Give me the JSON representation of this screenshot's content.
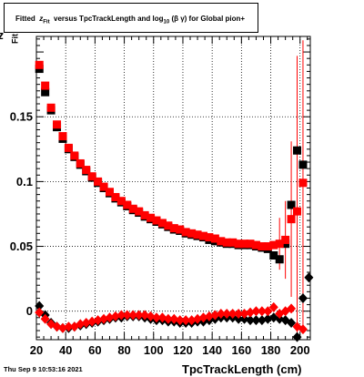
{
  "title": {
    "prefix": "Fitted",
    "z_sym": "z",
    "z_sub": "Fit",
    "middle": "versus TpcTrackLength and log",
    "log_sub": "10",
    "suffix": "(β   γ) for Global pion+"
  },
  "date_label": "Thu Sep  9 10:53:16 2021",
  "x_axis_title": "TpcTrackLength (cm)",
  "y_axis_title": {
    "main": "z",
    "sub": "Fit"
  },
  "colors": {
    "black_series": "#000000",
    "red_series": "#ff0000",
    "grid": "#000000"
  },
  "chart_data": {
    "type": "scatter",
    "xlim": [
      20,
      207
    ],
    "ylim": [
      -0.022,
      0.212
    ],
    "x_ticks": [
      20,
      40,
      60,
      80,
      100,
      120,
      140,
      160,
      180,
      200
    ],
    "y_ticks": [
      0,
      0.05,
      0.1,
      0.15
    ],
    "y_tick_labels": [
      "0",
      "0.05",
      "0.1",
      "0.15"
    ],
    "grid": true,
    "series": [
      {
        "marker": "square",
        "color": "#000000",
        "points": [
          [
            22,
            0.187
          ],
          [
            26,
            0.169
          ],
          [
            30,
            0.155
          ],
          [
            34,
            0.142
          ],
          [
            38,
            0.133
          ],
          [
            42,
            0.125
          ],
          [
            46,
            0.119
          ],
          [
            50,
            0.113
          ],
          [
            54,
            0.108
          ],
          [
            58,
            0.103
          ],
          [
            62,
            0.099
          ],
          [
            66,
            0.095
          ],
          [
            70,
            0.091
          ],
          [
            74,
            0.087
          ],
          [
            78,
            0.084
          ],
          [
            82,
            0.081
          ],
          [
            86,
            0.078
          ],
          [
            90,
            0.076
          ],
          [
            94,
            0.073
          ],
          [
            98,
            0.071
          ],
          [
            102,
            0.069
          ],
          [
            106,
            0.067
          ],
          [
            110,
            0.065
          ],
          [
            114,
            0.063
          ],
          [
            118,
            0.062
          ],
          [
            122,
            0.06
          ],
          [
            126,
            0.059
          ],
          [
            130,
            0.058
          ],
          [
            134,
            0.057
          ],
          [
            138,
            0.055
          ],
          [
            142,
            0.054
          ],
          [
            146,
            0.053
          ],
          [
            150,
            0.052
          ],
          [
            154,
            0.052
          ],
          [
            158,
            0.051
          ],
          [
            162,
            0.051
          ],
          [
            166,
            0.051
          ],
          [
            170,
            0.05
          ],
          [
            174,
            0.049
          ],
          [
            178,
            0.048
          ],
          [
            182,
            0.043
          ],
          [
            186,
            0.04
          ],
          [
            190,
            0.052
          ],
          [
            194,
            0.082
          ],
          [
            198,
            0.124
          ],
          [
            202,
            0.113
          ]
        ]
      },
      {
        "marker": "square",
        "color": "#ff0000",
        "points": [
          [
            22,
            0.19
          ],
          [
            26,
            0.174
          ],
          [
            30,
            0.157
          ],
          [
            34,
            0.144
          ],
          [
            38,
            0.135
          ],
          [
            42,
            0.126
          ],
          [
            46,
            0.12
          ],
          [
            50,
            0.114
          ],
          [
            54,
            0.109
          ],
          [
            58,
            0.104
          ],
          [
            62,
            0.1
          ],
          [
            66,
            0.096
          ],
          [
            70,
            0.092
          ],
          [
            74,
            0.088
          ],
          [
            78,
            0.085
          ],
          [
            82,
            0.082
          ],
          [
            86,
            0.079
          ],
          [
            90,
            0.077
          ],
          [
            94,
            0.074
          ],
          [
            98,
            0.072
          ],
          [
            102,
            0.07
          ],
          [
            106,
            0.068
          ],
          [
            110,
            0.066
          ],
          [
            114,
            0.064
          ],
          [
            118,
            0.063
          ],
          [
            122,
            0.061
          ],
          [
            126,
            0.06
          ],
          [
            130,
            0.059
          ],
          [
            134,
            0.058
          ],
          [
            138,
            0.057
          ],
          [
            142,
            0.056
          ],
          [
            146,
            0.054
          ],
          [
            150,
            0.053
          ],
          [
            154,
            0.053
          ],
          [
            158,
            0.052
          ],
          [
            162,
            0.052
          ],
          [
            166,
            0.052
          ],
          [
            170,
            0.051
          ],
          [
            174,
            0.05
          ],
          [
            178,
            0.05
          ],
          [
            182,
            0.051
          ],
          [
            186,
            0.052
          ],
          [
            190,
            0.055
          ],
          [
            194,
            0.071
          ],
          [
            198,
            0.077
          ],
          [
            202,
            0.099
          ]
        ]
      },
      {
        "marker": "diamond",
        "color": "#000000",
        "points": [
          [
            22,
            0.004
          ],
          [
            26,
            -0.003
          ],
          [
            30,
            -0.009
          ],
          [
            34,
            -0.012
          ],
          [
            38,
            -0.013
          ],
          [
            42,
            -0.013
          ],
          [
            46,
            -0.012
          ],
          [
            50,
            -0.011
          ],
          [
            54,
            -0.01
          ],
          [
            58,
            -0.009
          ],
          [
            62,
            -0.008
          ],
          [
            66,
            -0.007
          ],
          [
            70,
            -0.006
          ],
          [
            74,
            -0.005
          ],
          [
            78,
            -0.005
          ],
          [
            82,
            -0.004
          ],
          [
            86,
            -0.004
          ],
          [
            90,
            -0.004
          ],
          [
            94,
            -0.005
          ],
          [
            98,
            -0.006
          ],
          [
            102,
            -0.007
          ],
          [
            106,
            -0.007
          ],
          [
            110,
            -0.008
          ],
          [
            114,
            -0.008
          ],
          [
            118,
            -0.009
          ],
          [
            122,
            -0.009
          ],
          [
            126,
            -0.009
          ],
          [
            130,
            -0.008
          ],
          [
            134,
            -0.008
          ],
          [
            138,
            -0.007
          ],
          [
            142,
            -0.006
          ],
          [
            146,
            -0.005
          ],
          [
            150,
            -0.005
          ],
          [
            154,
            -0.005
          ],
          [
            158,
            -0.006
          ],
          [
            162,
            -0.006
          ],
          [
            166,
            -0.007
          ],
          [
            170,
            -0.007
          ],
          [
            174,
            -0.007
          ],
          [
            178,
            -0.006
          ],
          [
            182,
            -0.005
          ],
          [
            186,
            -0.006
          ],
          [
            190,
            -0.007
          ],
          [
            194,
            -0.009
          ],
          [
            198,
            -0.02
          ],
          [
            202,
            0.01
          ],
          [
            206,
            0.026
          ]
        ]
      },
      {
        "marker": "diamond",
        "color": "#ff0000",
        "points": [
          [
            22,
            -0.001
          ],
          [
            26,
            -0.006
          ],
          [
            30,
            -0.01
          ],
          [
            34,
            -0.012
          ],
          [
            38,
            -0.013
          ],
          [
            42,
            -0.012
          ],
          [
            46,
            -0.012
          ],
          [
            50,
            -0.01
          ],
          [
            54,
            -0.009
          ],
          [
            58,
            -0.008
          ],
          [
            62,
            -0.007
          ],
          [
            66,
            -0.006
          ],
          [
            70,
            -0.005
          ],
          [
            74,
            -0.004
          ],
          [
            78,
            -0.003
          ],
          [
            82,
            -0.003
          ],
          [
            86,
            -0.003
          ],
          [
            90,
            -0.003
          ],
          [
            94,
            -0.003
          ],
          [
            98,
            -0.004
          ],
          [
            102,
            -0.005
          ],
          [
            106,
            -0.005
          ],
          [
            110,
            -0.006
          ],
          [
            114,
            -0.006
          ],
          [
            118,
            -0.007
          ],
          [
            122,
            -0.007
          ],
          [
            126,
            -0.007
          ],
          [
            130,
            -0.006
          ],
          [
            134,
            -0.005
          ],
          [
            138,
            -0.004
          ],
          [
            142,
            -0.003
          ],
          [
            146,
            -0.002
          ],
          [
            150,
            -0.002
          ],
          [
            154,
            -0.002
          ],
          [
            158,
            -0.002
          ],
          [
            162,
            -0.002
          ],
          [
            166,
            -0.001
          ],
          [
            170,
            0.0
          ],
          [
            174,
            0.0
          ],
          [
            178,
            0.0
          ],
          [
            182,
            0.003
          ],
          [
            186,
            -0.002
          ],
          [
            190,
            0.0
          ],
          [
            194,
            0.002
          ],
          [
            198,
            -0.012
          ],
          [
            202,
            -0.014
          ]
        ]
      }
    ]
  }
}
